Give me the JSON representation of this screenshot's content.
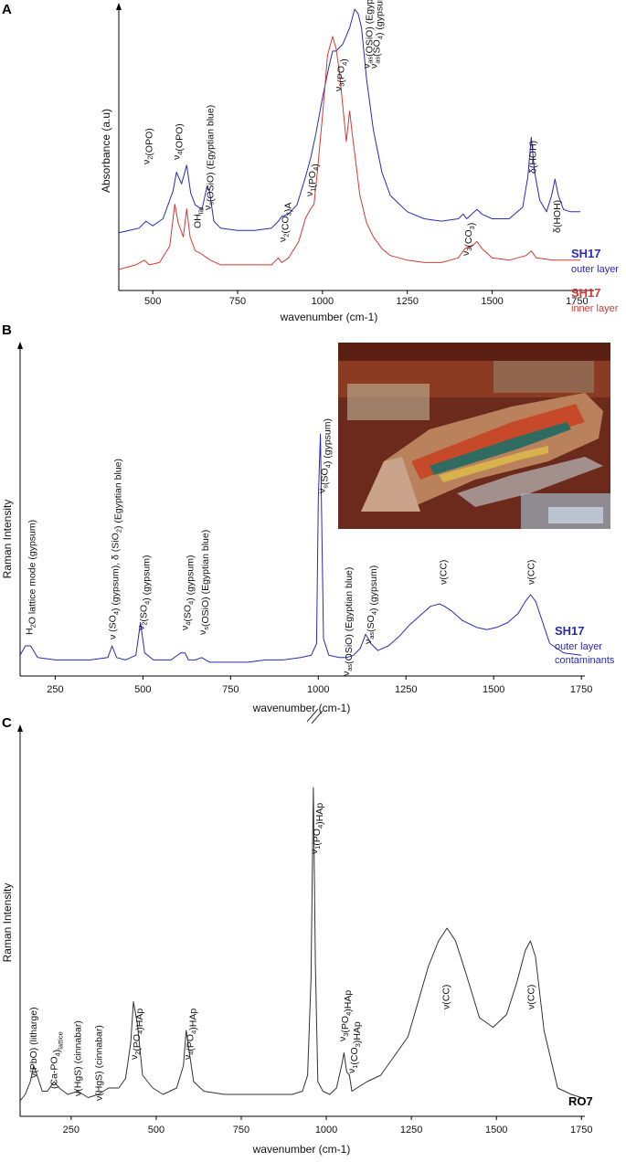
{
  "chart_data": [
    {
      "panel": "A",
      "type": "line",
      "xlabel": "wavenumber (cm-1)",
      "ylabel": "Absorbance (a.u)",
      "xlim": [
        400,
        1800
      ],
      "xticks": [
        "500",
        "750",
        "1000",
        "1250",
        "1500",
        "1750"
      ],
      "grid": false,
      "legend_position": "right",
      "series": [
        {
          "name": "SH17",
          "sub": "outer layer",
          "color": "#2a2ab5",
          "x": [
            400,
            430,
            460,
            480,
            500,
            530,
            560,
            570,
            585,
            600,
            612,
            625,
            645,
            660,
            667,
            680,
            700,
            750,
            800,
            850,
            870,
            880,
            900,
            925,
            950,
            965,
            980,
            1000,
            1020,
            1030,
            1040,
            1060,
            1080,
            1095,
            1105,
            1115,
            1130,
            1150,
            1175,
            1200,
            1250,
            1300,
            1350,
            1400,
            1415,
            1425,
            1440,
            1455,
            1470,
            1500,
            1550,
            1590,
            1605,
            1615,
            1625,
            1640,
            1660,
            1675,
            1685,
            1695,
            1710,
            1730,
            1760
          ],
          "y": [
            0.04,
            0.05,
            0.06,
            0.09,
            0.07,
            0.1,
            0.22,
            0.3,
            0.25,
            0.33,
            0.21,
            0.16,
            0.14,
            0.24,
            0.22,
            0.09,
            0.06,
            0.05,
            0.05,
            0.06,
            0.09,
            0.11,
            0.12,
            0.16,
            0.28,
            0.36,
            0.46,
            0.62,
            0.76,
            0.82,
            0.82,
            0.85,
            0.92,
            1.0,
            0.98,
            0.92,
            0.7,
            0.48,
            0.3,
            0.2,
            0.13,
            0.1,
            0.09,
            0.1,
            0.12,
            0.1,
            0.12,
            0.14,
            0.12,
            0.1,
            0.1,
            0.15,
            0.28,
            0.45,
            0.3,
            0.18,
            0.13,
            0.2,
            0.27,
            0.2,
            0.14,
            0.13,
            0.13
          ]
        },
        {
          "name": "SH17",
          "sub": "inner layer",
          "color": "#d23a32",
          "x": [
            400,
            450,
            475,
            490,
            520,
            550,
            565,
            575,
            590,
            600,
            610,
            625,
            640,
            660,
            670,
            700,
            750,
            800,
            850,
            870,
            880,
            900,
            930,
            950,
            965,
            975,
            985,
            1000,
            1015,
            1030,
            1040,
            1050,
            1070,
            1080,
            1088,
            1095,
            1110,
            1130,
            1150,
            1175,
            1200,
            1250,
            1300,
            1350,
            1400,
            1420,
            1440,
            1455,
            1470,
            1500,
            1550,
            1600,
            1615,
            1630,
            1680,
            1720,
            1760
          ],
          "y": [
            0.0,
            0.02,
            0.04,
            0.02,
            0.03,
            0.1,
            0.28,
            0.2,
            0.14,
            0.26,
            0.14,
            0.08,
            0.07,
            0.05,
            0.04,
            0.02,
            0.02,
            0.02,
            0.02,
            0.05,
            0.03,
            0.05,
            0.12,
            0.22,
            0.26,
            0.28,
            0.42,
            0.66,
            0.92,
            1.0,
            0.95,
            0.85,
            0.55,
            0.68,
            0.58,
            0.5,
            0.32,
            0.2,
            0.14,
            0.09,
            0.06,
            0.04,
            0.03,
            0.03,
            0.05,
            0.09,
            0.1,
            0.12,
            0.09,
            0.05,
            0.04,
            0.06,
            0.08,
            0.05,
            0.04,
            0.04,
            0.04
          ]
        }
      ],
      "annotations": [
        {
          "x": 480,
          "base": "ν",
          "sub1": "2",
          "rest": "(OPO)",
          "sub2": ""
        },
        {
          "x": 568,
          "base": "ν",
          "sub1": "4",
          "rest": "(OPO)",
          "sub2": ""
        },
        {
          "x": 630,
          "base": "OH",
          "sub1": "lib",
          "rest": "",
          "sub2": ""
        },
        {
          "x": 660,
          "base": "ν",
          "sub1": "s",
          "rest": "(OSiO) (Egyptian blue)",
          "sub2": ""
        },
        {
          "x": 880,
          "base": "ν",
          "sub1": "2",
          "rest": "(CO",
          "sub2": "3",
          "rest2": ")A"
        },
        {
          "x": 960,
          "base": "ν",
          "sub1": "1",
          "rest": "(PO",
          "sub2": "4",
          "rest2": ")"
        },
        {
          "x": 1045,
          "base": "ν",
          "sub1": "3",
          "rest": "(PO",
          "sub2": "4",
          "rest2": ")"
        },
        {
          "x": 1128,
          "base": "ν",
          "sub1": "as",
          "rest": "(OSiO) (Egyptian blue)",
          "sub2": ""
        },
        {
          "x": 1150,
          "base": "ν",
          "sub1": "as",
          "rest": "(SO",
          "sub2": "4",
          "rest2": ") (gypsum)"
        },
        {
          "x": 1420,
          "base": "ν",
          "sub1": "3",
          "rest": "(CO",
          "sub2": "3",
          "rest2": ")"
        },
        {
          "x": 1618,
          "base": "δ(HOH)",
          "sub1": "",
          "rest": "",
          "sub2": ""
        },
        {
          "x": 1690,
          "base": "δ(HOH)",
          "sub1": "",
          "rest": "",
          "sub2": ""
        }
      ]
    },
    {
      "panel": "B",
      "type": "line",
      "xlabel": "wavenumber (cm-1)",
      "ylabel": "Raman Intensity",
      "xlim": [
        150,
        1760
      ],
      "xticks": [
        "250",
        "500",
        "750",
        "1000",
        "1250",
        "1500",
        "1750"
      ],
      "grid": false,
      "legend_position": "right",
      "series": [
        {
          "name": "SH17",
          "sub": "outer layer",
          "sub3": "contaminants",
          "color": "#2a2ab5",
          "x": [
            150,
            165,
            180,
            200,
            250,
            300,
            350,
            400,
            412,
            425,
            450,
            480,
            493,
            505,
            530,
            580,
            608,
            620,
            630,
            650,
            668,
            690,
            750,
            800,
            850,
            900,
            950,
            980,
            995,
            1000,
            1006,
            1015,
            1030,
            1060,
            1080,
            1100,
            1120,
            1135,
            1150,
            1170,
            1200,
            1230,
            1260,
            1290,
            1320,
            1345,
            1360,
            1380,
            1410,
            1450,
            1480,
            1510,
            1540,
            1570,
            1590,
            1605,
            1620,
            1640,
            1660,
            1700,
            1750
          ],
          "y": [
            0.05,
            0.09,
            0.09,
            0.04,
            0.03,
            0.03,
            0.03,
            0.04,
            0.09,
            0.04,
            0.03,
            0.05,
            0.19,
            0.06,
            0.03,
            0.03,
            0.06,
            0.06,
            0.03,
            0.03,
            0.04,
            0.02,
            0.02,
            0.02,
            0.03,
            0.03,
            0.04,
            0.05,
            0.1,
            0.72,
            1.0,
            0.12,
            0.05,
            0.04,
            0.04,
            0.05,
            0.08,
            0.14,
            0.1,
            0.07,
            0.09,
            0.13,
            0.18,
            0.22,
            0.26,
            0.27,
            0.26,
            0.24,
            0.2,
            0.17,
            0.16,
            0.17,
            0.19,
            0.23,
            0.28,
            0.31,
            0.28,
            0.19,
            0.1,
            0.06,
            0.05
          ]
        }
      ],
      "annotations": [
        {
          "x": 175,
          "base": "H",
          "sub1": "2",
          "rest": "O lattice mode (gypsum)",
          "sub2": ""
        },
        {
          "x": 412,
          "base": "ν (SO",
          "sub1": "4",
          "rest": ") (gypsum), δ (SiO",
          "sub2": "2",
          "rest2": ") (Egyptian blue)"
        },
        {
          "x": 493,
          "base": "ν",
          "sub1": "2",
          "rest": "(SO",
          "sub2": "4",
          "rest2": ") (gypsum)"
        },
        {
          "x": 618,
          "base": "ν",
          "sub1": "4",
          "rest": "(SO",
          "sub2": "4",
          "rest2": ") (gypsum)"
        },
        {
          "x": 668,
          "base": "ν",
          "sub1": "s",
          "rest": "(OSiO) (Egyptian blue)",
          "sub2": ""
        },
        {
          "x": 1008,
          "base": "ν",
          "sub1": "s",
          "rest": "(SO",
          "sub2": "4",
          "rest2": ") (gypsum)"
        },
        {
          "x": 1078,
          "base": "ν",
          "sub1": "as",
          "rest": "(OSiO) (Egyptian blue)",
          "sub2": ""
        },
        {
          "x": 1140,
          "base": "ν",
          "sub1": "as",
          "rest": "(SO",
          "sub2": "4",
          "rest2": ") (gypsum)"
        },
        {
          "x": 1355,
          "base": "ν(CC)",
          "sub1": "",
          "rest": "",
          "sub2": ""
        },
        {
          "x": 1605,
          "base": "ν(CC)",
          "sub1": "",
          "rest": "",
          "sub2": ""
        }
      ]
    },
    {
      "panel": "C",
      "type": "line",
      "xlabel": "wavenumber (cm-1)",
      "ylabel": "Raman Intensity",
      "xlim": [
        100,
        1760
      ],
      "xticks": [
        "250",
        "500",
        "750",
        "1000",
        "1250",
        "1500",
        "1750"
      ],
      "grid": false,
      "legend_position": "right",
      "series": [
        {
          "name": "RO7",
          "color": "#333333",
          "x": [
            100,
            115,
            130,
            140,
            150,
            165,
            180,
            200,
            215,
            240,
            270,
            285,
            300,
            330,
            360,
            390,
            410,
            425,
            433,
            445,
            460,
            490,
            520,
            560,
            580,
            588,
            596,
            610,
            640,
            700,
            750,
            800,
            850,
            900,
            930,
            945,
            955,
            962,
            968,
            975,
            990,
            1010,
            1030,
            1045,
            1052,
            1060,
            1068,
            1075,
            1090,
            1120,
            1160,
            1200,
            1240,
            1270,
            1300,
            1330,
            1355,
            1380,
            1410,
            1450,
            1490,
            1530,
            1560,
            1585,
            1600,
            1615,
            1640,
            1680,
            1720,
            1750
          ],
          "y": [
            0.02,
            0.04,
            0.08,
            0.13,
            0.1,
            0.05,
            0.05,
            0.08,
            0.06,
            0.04,
            0.05,
            0.04,
            0.03,
            0.04,
            0.06,
            0.06,
            0.09,
            0.2,
            0.33,
            0.26,
            0.1,
            0.06,
            0.04,
            0.06,
            0.13,
            0.24,
            0.18,
            0.08,
            0.05,
            0.04,
            0.04,
            0.04,
            0.04,
            0.04,
            0.05,
            0.1,
            0.4,
            1.0,
            0.45,
            0.08,
            0.05,
            0.04,
            0.06,
            0.13,
            0.17,
            0.11,
            0.1,
            0.05,
            0.06,
            0.08,
            0.1,
            0.16,
            0.22,
            0.33,
            0.44,
            0.52,
            0.56,
            0.52,
            0.42,
            0.28,
            0.25,
            0.29,
            0.39,
            0.49,
            0.52,
            0.47,
            0.24,
            0.06,
            0.04,
            0.03
          ]
        }
      ],
      "annotations": [
        {
          "x": 138,
          "base": "ν(PbO) (litharge)",
          "sub1": "",
          "rest": "",
          "sub2": ""
        },
        {
          "x": 198,
          "base": "(Ca-PO",
          "sub1": "4",
          "rest": ")",
          "sub2": "lattice"
        },
        {
          "x": 268,
          "base": "ν(HgS) (cinnabar)",
          "sub1": "",
          "rest": "",
          "sub2": ""
        },
        {
          "x": 330,
          "base": "ν(HgS) (cinnabar)",
          "sub1": "",
          "rest": "",
          "sub2": ""
        },
        {
          "x": 433,
          "base": "ν",
          "sub1": "2",
          "rest": "(PO",
          "sub2": "4",
          "rest2": ")HAp"
        },
        {
          "x": 590,
          "base": "ν",
          "sub1": "4",
          "rest": "(PO",
          "sub2": "4",
          "rest2": ")HAp"
        },
        {
          "x": 962,
          "base": "ν",
          "sub1": "1",
          "rest": "(PO",
          "sub2": "4",
          "rest2": ")HAp"
        },
        {
          "x": 1045,
          "base": "ν",
          "sub1": "3",
          "rest": "(PO",
          "sub2": "4",
          "rest2": ")HAp"
        },
        {
          "x": 1072,
          "base": "ν",
          "sub1": "1",
          "rest": "(CO",
          "sub2": "3",
          "rest2": ")HAp"
        },
        {
          "x": 1350,
          "base": "ν(CC)",
          "sub1": "",
          "rest": "",
          "sub2": ""
        },
        {
          "x": 1600,
          "base": "ν(CC)",
          "sub1": "",
          "rest": "",
          "sub2": ""
        }
      ]
    }
  ],
  "panel_labels": [
    "A",
    "B",
    "C"
  ],
  "photo": {
    "description_name": "mummy-photo"
  }
}
